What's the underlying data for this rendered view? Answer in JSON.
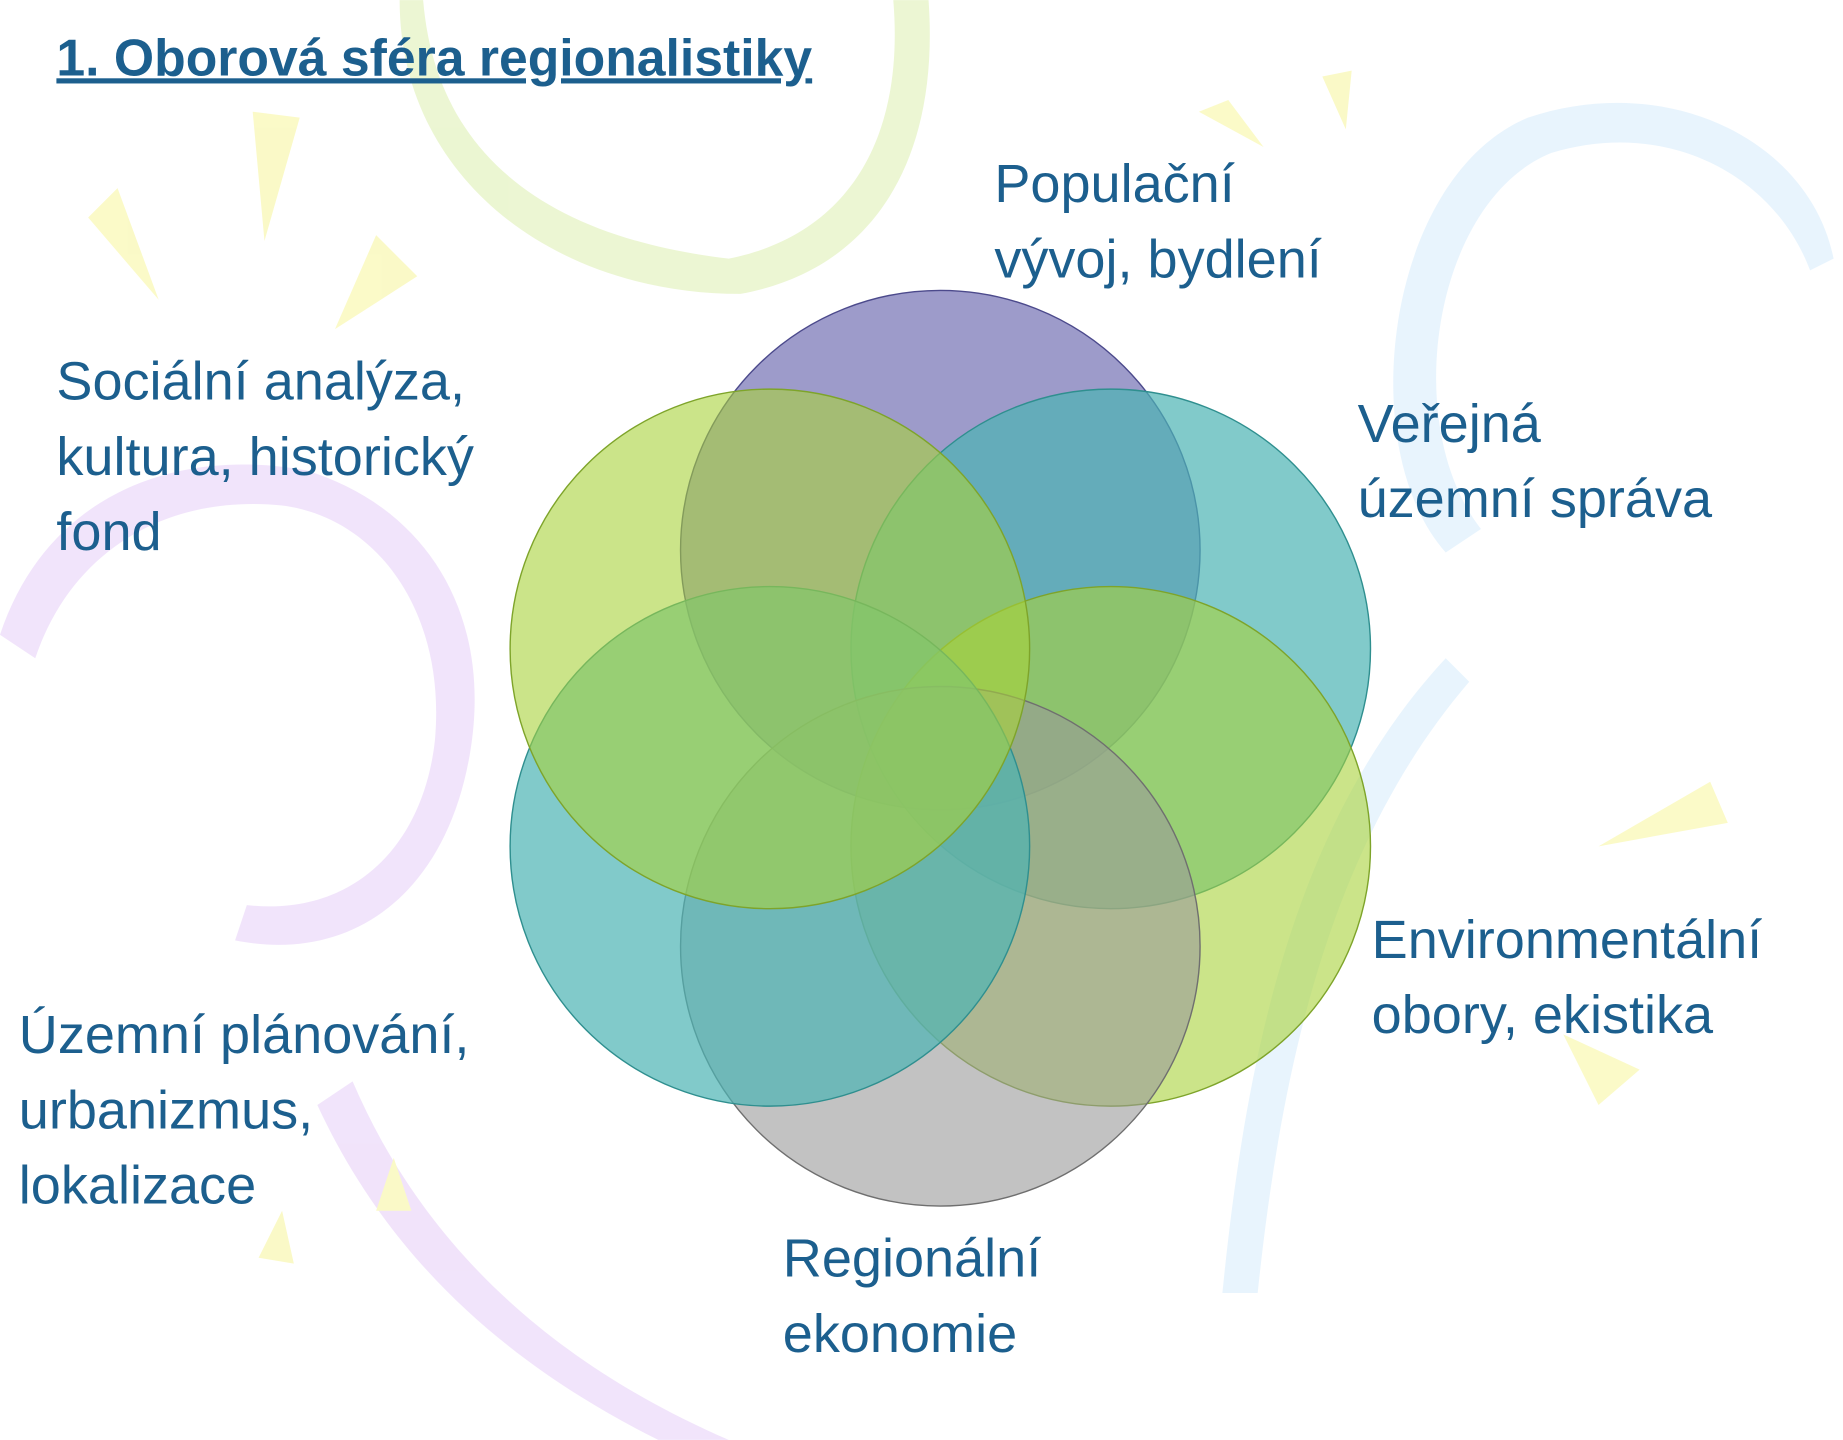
{
  "title": "1. Oborová sféra regionalistiky",
  "nodes": [
    {
      "lines": [
        "Populační",
        "vývoj, bydlení"
      ]
    },
    {
      "lines": [
        "Veřejná",
        "územní správa"
      ]
    },
    {
      "lines": [
        "Environmentální",
        "obory, ekistika"
      ]
    },
    {
      "lines": [
        "Regionální",
        "ekonomie"
      ]
    },
    {
      "lines": [
        "Územní plánování,",
        "urbanizmus,",
        "lokalizace"
      ]
    },
    {
      "lines": [
        "Sociální analýza,",
        "kultura, historický",
        "fond"
      ]
    }
  ]
}
